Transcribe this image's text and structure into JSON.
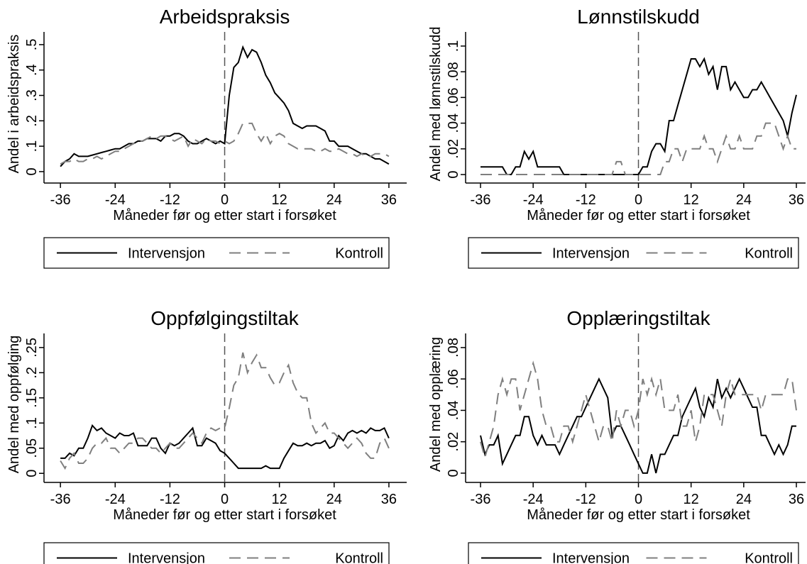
{
  "chart_data": [
    {
      "type": "line",
      "title": "Arbeidspraksis",
      "xlabel": "Måneder før og etter start i forsøket",
      "ylabel": "Andel i arbeidspraksis",
      "x": [
        -36,
        -35,
        -34,
        -33,
        -32,
        -31,
        -30,
        -29,
        -28,
        -27,
        -26,
        -25,
        -24,
        -23,
        -22,
        -21,
        -20,
        -19,
        -18,
        -17,
        -16,
        -15,
        -14,
        -13,
        -12,
        -11,
        -10,
        -9,
        -8,
        -7,
        -6,
        -5,
        -4,
        -3,
        -2,
        -1,
        0,
        1,
        2,
        3,
        4,
        5,
        6,
        7,
        8,
        9,
        10,
        11,
        12,
        13,
        14,
        15,
        16,
        17,
        18,
        19,
        20,
        21,
        22,
        23,
        24,
        25,
        26,
        27,
        28,
        29,
        30,
        31,
        32,
        33,
        34,
        35,
        36
      ],
      "series": [
        {
          "name": "Intervensjon",
          "color": "#000000",
          "dash": "solid",
          "values": [
            0.02,
            0.04,
            0.05,
            0.07,
            0.06,
            0.06,
            0.06,
            0.065,
            0.07,
            0.075,
            0.08,
            0.085,
            0.09,
            0.09,
            0.1,
            0.11,
            0.11,
            0.12,
            0.12,
            0.13,
            0.13,
            0.13,
            0.12,
            0.14,
            0.14,
            0.15,
            0.15,
            0.14,
            0.12,
            0.11,
            0.11,
            0.12,
            0.13,
            0.12,
            0.11,
            0.12,
            0.11,
            0.3,
            0.41,
            0.43,
            0.49,
            0.45,
            0.48,
            0.47,
            0.43,
            0.38,
            0.35,
            0.31,
            0.29,
            0.27,
            0.24,
            0.19,
            0.18,
            0.17,
            0.18,
            0.18,
            0.18,
            0.17,
            0.16,
            0.12,
            0.12,
            0.1,
            0.1,
            0.1,
            0.09,
            0.08,
            0.07,
            0.07,
            0.06,
            0.05,
            0.05,
            0.04,
            0.03
          ]
        },
        {
          "name": "Kontroll",
          "color": "#7f7f7f",
          "dash": "dashed",
          "values": [
            0.03,
            0.04,
            0.04,
            0.05,
            0.04,
            0.04,
            0.05,
            0.05,
            0.06,
            0.05,
            0.06,
            0.07,
            0.08,
            0.08,
            0.09,
            0.1,
            0.11,
            0.12,
            0.12,
            0.13,
            0.14,
            0.13,
            0.14,
            0.14,
            0.13,
            0.12,
            0.13,
            0.14,
            0.1,
            0.13,
            0.12,
            0.11,
            0.13,
            0.12,
            0.12,
            0.11,
            0.12,
            0.11,
            0.12,
            0.15,
            0.19,
            0.19,
            0.19,
            0.15,
            0.12,
            0.15,
            0.11,
            0.14,
            0.15,
            0.14,
            0.11,
            0.1,
            0.09,
            0.09,
            0.09,
            0.09,
            0.08,
            0.08,
            0.09,
            0.08,
            0.08,
            0.09,
            0.08,
            0.07,
            0.07,
            0.06,
            0.07,
            0.06,
            0.06,
            0.07,
            0.07,
            0.07,
            0.06
          ]
        }
      ],
      "xlim": [
        -39.6,
        39.9
      ],
      "xticks": [
        -36,
        -24,
        -12,
        0,
        12,
        24,
        36
      ],
      "xline": 0,
      "ylim": [
        -0.045,
        0.55
      ],
      "yticks": [
        0,
        {
          "value": 0.1,
          "label": ".1"
        },
        {
          "value": 0.2,
          "label": ".2"
        },
        {
          "value": 0.3,
          "label": ".3"
        },
        {
          "value": 0.4,
          "label": ".4"
        },
        {
          "value": 0.5,
          "label": ".5"
        }
      ],
      "grid": false
    },
    {
      "type": "line",
      "title": "Lønnstilskudd",
      "xlabel": "Måneder før og etter start i forsøket",
      "ylabel": "Andel med lønnstilskudd",
      "x": [
        -36,
        -35,
        -34,
        -33,
        -32,
        -31,
        -30,
        -29,
        -28,
        -27,
        -26,
        -25,
        -24,
        -23,
        -22,
        -21,
        -20,
        -19,
        -18,
        -17,
        -16,
        -15,
        -14,
        -13,
        -12,
        -11,
        -10,
        -9,
        -8,
        -7,
        -6,
        -5,
        -4,
        -3,
        -2,
        -1,
        0,
        1,
        2,
        3,
        4,
        5,
        6,
        7,
        8,
        9,
        10,
        11,
        12,
        13,
        14,
        15,
        16,
        17,
        18,
        19,
        20,
        21,
        22,
        23,
        24,
        25,
        26,
        27,
        28,
        29,
        30,
        31,
        32,
        33,
        34,
        35,
        36
      ],
      "series": [
        {
          "name": "Intervensjon",
          "color": "#000000",
          "dash": "solid",
          "values": [
            0.006,
            0.006,
            0.006,
            0.006,
            0.006,
            0.006,
            0,
            0,
            0.006,
            0.006,
            0.018,
            0.012,
            0.018,
            0.006,
            0.006,
            0.006,
            0.006,
            0.006,
            0.006,
            0,
            0,
            0,
            0,
            0,
            0,
            0,
            0,
            0,
            0,
            0,
            0,
            0,
            0,
            0,
            0,
            0,
            0,
            0.006,
            0.006,
            0.018,
            0.024,
            0.024,
            0.018,
            0.042,
            0.042,
            0.054,
            0.066,
            0.078,
            0.09,
            0.09,
            0.084,
            0.09,
            0.078,
            0.084,
            0.066,
            0.084,
            0.084,
            0.066,
            0.072,
            0.066,
            0.06,
            0.06,
            0.066,
            0.066,
            0.072,
            0.066,
            0.06,
            0.054,
            0.048,
            0.042,
            0.03,
            0.048,
            0.062
          ]
        },
        {
          "name": "Kontroll",
          "color": "#7f7f7f",
          "dash": "dashed",
          "values": [
            0,
            0,
            0,
            0,
            0,
            0,
            0,
            0,
            0,
            0,
            0,
            0,
            0,
            0,
            0,
            0,
            0,
            0,
            0,
            0,
            0,
            0,
            0,
            0,
            0,
            0,
            0,
            0,
            0,
            0,
            0,
            0.01,
            0.01,
            0,
            0,
            0,
            0,
            0,
            0,
            0,
            0,
            0,
            0.01,
            0.01,
            0.02,
            0.02,
            0.01,
            0.02,
            0.02,
            0.02,
            0.02,
            0.03,
            0.02,
            0.02,
            0.01,
            0.02,
            0.03,
            0.02,
            0.02,
            0.03,
            0.02,
            0.02,
            0.02,
            0.03,
            0.03,
            0.04,
            0.04,
            0.04,
            0.03,
            0.02,
            0.03,
            0.02,
            0.02
          ]
        }
      ],
      "xlim": [
        -39.4,
        38.1
      ],
      "xticks": [
        -36,
        -24,
        -12,
        0,
        12,
        24,
        36
      ],
      "xline": 0,
      "ylim": [
        -0.0066,
        0.111
      ],
      "yticks": [
        0,
        {
          "value": 0.02,
          "label": ".02"
        },
        {
          "value": 0.04,
          "label": ".04"
        },
        {
          "value": 0.06,
          "label": ".06"
        },
        {
          "value": 0.08,
          "label": ".08"
        },
        {
          "value": 0.1,
          "label": ".1"
        }
      ],
      "grid": false
    },
    {
      "type": "line",
      "title": "Oppfølgingstiltak",
      "xlabel": "Måneder før og etter start i forsøket",
      "ylabel": "Andel med oppfølging",
      "x": [
        -36,
        -35,
        -34,
        -33,
        -32,
        -31,
        -30,
        -29,
        -28,
        -27,
        -26,
        -25,
        -24,
        -23,
        -22,
        -21,
        -20,
        -19,
        -18,
        -17,
        -16,
        -15,
        -14,
        -13,
        -12,
        -11,
        -10,
        -9,
        -8,
        -7,
        -6,
        -5,
        -4,
        -3,
        -2,
        -1,
        0,
        1,
        2,
        3,
        4,
        5,
        6,
        7,
        8,
        9,
        10,
        11,
        12,
        13,
        14,
        15,
        16,
        17,
        18,
        19,
        20,
        21,
        22,
        23,
        24,
        25,
        26,
        27,
        28,
        29,
        30,
        31,
        32,
        33,
        34,
        35,
        36
      ],
      "series": [
        {
          "name": "Intervensjon",
          "color": "#000000",
          "dash": "solid",
          "values": [
            0.03,
            0.03,
            0.04,
            0.035,
            0.05,
            0.05,
            0.07,
            0.095,
            0.085,
            0.09,
            0.08,
            0.075,
            0.07,
            0.08,
            0.075,
            0.075,
            0.08,
            0.055,
            0.055,
            0.055,
            0.07,
            0.07,
            0.05,
            0.04,
            0.06,
            0.055,
            0.06,
            0.07,
            0.08,
            0.09,
            0.055,
            0.055,
            0.07,
            0.065,
            0.06,
            0.045,
            0.04,
            0.03,
            0.02,
            0.01,
            0.01,
            0.01,
            0.01,
            0.01,
            0.01,
            0.015,
            0.01,
            0.01,
            0.01,
            0.03,
            0.045,
            0.06,
            0.055,
            0.055,
            0.06,
            0.055,
            0.06,
            0.06,
            0.065,
            0.05,
            0.055,
            0.075,
            0.065,
            0.08,
            0.085,
            0.08,
            0.085,
            0.08,
            0.09,
            0.085,
            0.085,
            0.09,
            0.07
          ]
        },
        {
          "name": "Kontroll",
          "color": "#7f7f7f",
          "dash": "dashed",
          "values": [
            0.025,
            0.01,
            0.03,
            0.04,
            0.02,
            0.02,
            0.03,
            0.05,
            0.06,
            0.06,
            0.07,
            0.05,
            0.05,
            0.04,
            0.05,
            0.06,
            0.06,
            0.07,
            0.07,
            0.06,
            0.05,
            0.05,
            0.04,
            0.05,
            0.06,
            0.05,
            0.05,
            0.06,
            0.07,
            0.08,
            0.07,
            0.06,
            0.08,
            0.09,
            0.085,
            0.09,
            0.09,
            0.13,
            0.175,
            0.19,
            0.24,
            0.2,
            0.22,
            0.235,
            0.21,
            0.21,
            0.19,
            0.175,
            0.18,
            0.2,
            0.215,
            0.18,
            0.16,
            0.15,
            0.15,
            0.1,
            0.08,
            0.09,
            0.1,
            0.08,
            0.08,
            0.07,
            0.06,
            0.05,
            0.06,
            0.07,
            0.06,
            0.04,
            0.03,
            0.03,
            0.06,
            0.07,
            0.05
          ]
        }
      ],
      "xlim": [
        -39.6,
        39.9
      ],
      "xticks": [
        -36,
        -24,
        -12,
        0,
        12,
        24,
        36
      ],
      "xline": 0,
      "ylim": [
        -0.018,
        0.278
      ],
      "yticks": [
        0,
        {
          "value": 0.05,
          "label": ".05"
        },
        {
          "value": 0.1,
          "label": ".1"
        },
        {
          "value": 0.15,
          "label": ".15"
        },
        {
          "value": 0.2,
          "label": ".2"
        },
        {
          "value": 0.25,
          "label": ".25"
        }
      ],
      "grid": false
    },
    {
      "type": "line",
      "title": "Opplæringstiltak",
      "xlabel": "Måneder før og etter start i forsøket",
      "ylabel": "Andel med opplæring",
      "x": [
        -36,
        -35,
        -34,
        -33,
        -32,
        -31,
        -30,
        -29,
        -28,
        -27,
        -26,
        -25,
        -24,
        -23,
        -22,
        -21,
        -20,
        -19,
        -18,
        -17,
        -16,
        -15,
        -14,
        -13,
        -12,
        -11,
        -10,
        -9,
        -8,
        -7,
        -6,
        -5,
        -4,
        -3,
        -2,
        -1,
        0,
        1,
        2,
        3,
        4,
        5,
        6,
        7,
        8,
        9,
        10,
        11,
        12,
        13,
        14,
        15,
        16,
        17,
        18,
        19,
        20,
        21,
        22,
        23,
        24,
        25,
        26,
        27,
        28,
        29,
        30,
        31,
        32,
        33,
        34,
        35,
        36
      ],
      "series": [
        {
          "name": "Intervensjon",
          "color": "#000000",
          "dash": "solid",
          "values": [
            0.024,
            0.012,
            0.018,
            0.018,
            0.024,
            0.006,
            0.012,
            0.018,
            0.024,
            0.024,
            0.036,
            0.036,
            0.024,
            0.018,
            0.024,
            0.018,
            0.018,
            0.018,
            0.012,
            0.018,
            0.024,
            0.03,
            0.036,
            0.036,
            0.042,
            0.048,
            0.054,
            0.06,
            0.054,
            0.048,
            0.024,
            0.03,
            0.03,
            0.024,
            0.018,
            0.012,
            0.006,
            0,
            0,
            0.012,
            0,
            0.012,
            0.012,
            0.018,
            0.024,
            0.024,
            0.036,
            0.042,
            0.048,
            0.054,
            0.042,
            0.036,
            0.048,
            0.042,
            0.06,
            0.048,
            0.054,
            0.048,
            0.054,
            0.06,
            0.054,
            0.048,
            0.042,
            0.042,
            0.024,
            0.024,
            0.018,
            0.012,
            0.018,
            0.012,
            0.018,
            0.03,
            0.03
          ]
        },
        {
          "name": "Kontroll",
          "color": "#7f7f7f",
          "dash": "dashed",
          "values": [
            0.02,
            0.01,
            0.02,
            0.03,
            0.05,
            0.06,
            0.05,
            0.06,
            0.06,
            0.04,
            0.05,
            0.06,
            0.07,
            0.06,
            0.04,
            0.03,
            0.03,
            0.02,
            0.02,
            0.03,
            0.03,
            0.02,
            0.03,
            0.04,
            0.05,
            0.04,
            0.03,
            0.02,
            0.03,
            0.03,
            0.02,
            0.04,
            0.03,
            0.04,
            0.04,
            0.03,
            0.04,
            0.06,
            0.05,
            0.06,
            0.05,
            0.06,
            0.04,
            0.04,
            0.04,
            0.05,
            0.03,
            0.03,
            0.04,
            0.02,
            0.03,
            0.05,
            0.05,
            0.05,
            0.04,
            0.03,
            0.05,
            0.06,
            0.05,
            0.05,
            0.05,
            0.05,
            0.05,
            0.05,
            0.04,
            0.05,
            0.05,
            0.05,
            0.05,
            0.05,
            0.06,
            0.06,
            0.04
          ]
        }
      ],
      "xlim": [
        -39.4,
        38.1
      ],
      "xticks": [
        -36,
        -24,
        -12,
        0,
        12,
        24,
        36
      ],
      "xline": 0,
      "ylim": [
        -0.0059,
        0.089
      ],
      "yticks": [
        0,
        {
          "value": 0.02,
          "label": ".02"
        },
        {
          "value": 0.04,
          "label": ".04"
        },
        {
          "value": 0.06,
          "label": ".06"
        },
        {
          "value": 0.08,
          "label": ".08"
        }
      ],
      "grid": false
    }
  ]
}
